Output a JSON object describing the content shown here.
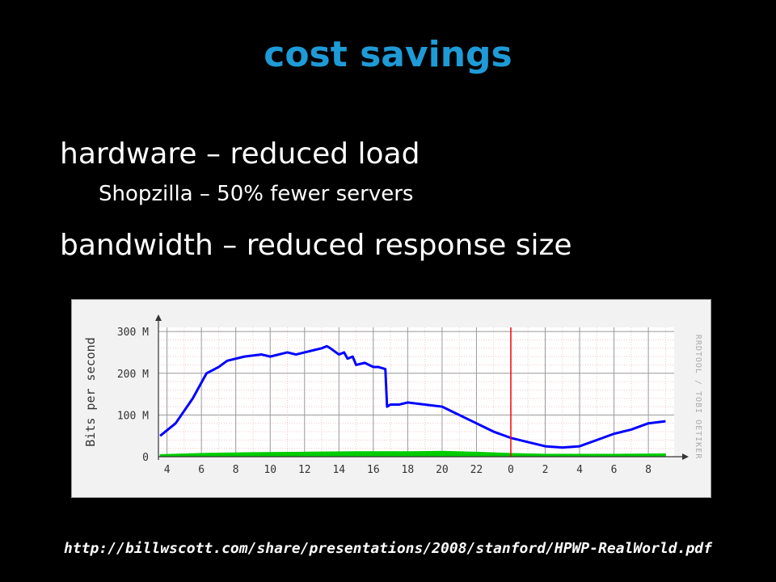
{
  "slide": {
    "title": "cost savings",
    "bullets": [
      {
        "text": "hardware – reduced load",
        "sub": "Shopzilla – 50% fewer servers"
      },
      {
        "text": "bandwidth – reduced response size"
      }
    ],
    "source_url": "http://billwscott.com/share/presentations/2008/stanford/HPWP-RealWorld.pdf"
  },
  "colors": {
    "title": "#1e9bd7",
    "line": "#0000ff",
    "fill": "#00cc00",
    "marker": "#ff0000"
  },
  "chart_data": {
    "type": "line",
    "ylabel": "Bits per second",
    "watermark": "RRDTOOL / TOBI OETIKER",
    "x_ticks": [
      "4",
      "6",
      "8",
      "10",
      "12",
      "14",
      "16",
      "18",
      "20",
      "22",
      "0",
      "2",
      "4",
      "6",
      "8"
    ],
    "y_ticks": [
      "0",
      "100 M",
      "200 M",
      "300 M"
    ],
    "ylim": [
      0,
      310
    ],
    "x_range": [
      3.5,
      33.5
    ],
    "vertical_marker_at": 24,
    "grid": true,
    "series": [
      {
        "style": "line",
        "x": [
          3.6,
          4.5,
          5.5,
          6.3,
          7.0,
          7.5,
          8.5,
          9.5,
          10.0,
          11.0,
          11.5,
          12.0,
          12.5,
          13.0,
          13.3,
          13.5,
          14.0,
          14.3,
          14.5,
          14.8,
          15.0,
          15.5,
          16.0,
          16.3,
          16.7,
          16.8,
          17.0,
          17.5,
          18.0,
          19.0,
          20.0,
          20.5,
          21.0,
          21.5,
          22.0,
          22.5,
          23.0,
          24.0,
          25.0,
          26.0,
          27.0,
          28.0,
          29.0,
          30.0,
          31.0,
          32.0,
          33.0
        ],
        "y": [
          50,
          80,
          140,
          200,
          215,
          230,
          240,
          245,
          240,
          250,
          245,
          250,
          255,
          260,
          265,
          260,
          245,
          250,
          235,
          240,
          220,
          225,
          215,
          215,
          210,
          120,
          125,
          125,
          130,
          125,
          120,
          110,
          100,
          90,
          80,
          70,
          60,
          45,
          35,
          25,
          22,
          25,
          40,
          55,
          65,
          80,
          85
        ]
      },
      {
        "style": "area",
        "x": [
          3.6,
          6.0,
          9.0,
          12.0,
          15.0,
          18.0,
          20.0,
          22.0,
          24.0,
          26.0,
          28.0,
          30.0,
          33.0
        ],
        "y": [
          5,
          8,
          10,
          11,
          12,
          12,
          13,
          11,
          8,
          6,
          6,
          6,
          7
        ]
      }
    ]
  }
}
